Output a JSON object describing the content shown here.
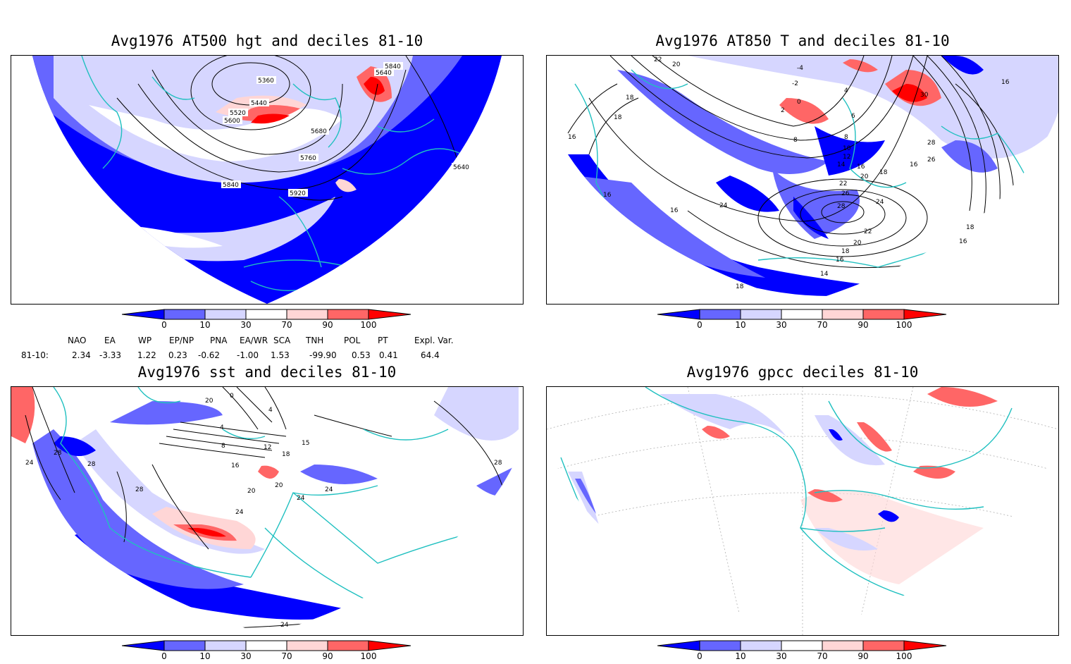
{
  "panels": [
    {
      "title": "Avg1976 AT500 hgt and deciles 81-10",
      "contour_labels": [
        "5360",
        "5440",
        "5520",
        "5600",
        "5840",
        "5640",
        "5680",
        "5760",
        "5840",
        "5920",
        "5640"
      ]
    },
    {
      "title": "Avg1976 AT850 T and deciles 81-10",
      "contour_labels": [
        "22",
        "20",
        "-4",
        "-2",
        "0",
        "2",
        "4",
        "18",
        "18",
        "16",
        "8",
        "6",
        "8",
        "10",
        "12",
        "14",
        "16",
        "18",
        "20",
        "22",
        "24",
        "26",
        "28",
        "30",
        "28",
        "26",
        "16",
        "16",
        "16",
        "16",
        "24",
        "22",
        "20",
        "18",
        "16",
        "14",
        "18",
        "18",
        "16"
      ]
    },
    {
      "title": "Avg1976 sst and deciles 81-10",
      "contour_labels": [
        "20",
        "0",
        "4",
        "4",
        "8",
        "12",
        "15",
        "16",
        "18",
        "20",
        "20",
        "24",
        "24",
        "28",
        "28",
        "28",
        "24",
        "24",
        "24",
        "28"
      ]
    },
    {
      "title": "Avg1976 gpcc deciles 81-10",
      "contour_labels": []
    }
  ],
  "colorbar": {
    "ticks": [
      "0",
      "10",
      "30",
      "70",
      "90",
      "100"
    ],
    "colors": [
      "#0000ff",
      "#6666ff",
      "#d6d6ff",
      "#ffffff",
      "#ffd6d6",
      "#ff6666",
      "#ff0000"
    ]
  },
  "indices": {
    "headers": [
      "NAO",
      "EA",
      "WP",
      "EP/NP",
      "PNA",
      "EA/WR",
      "SCA",
      "TNH",
      "POL",
      "PT",
      "Expl. Var."
    ],
    "row_label": "81-10:",
    "values": [
      "2.34",
      "-3.33",
      "1.22",
      "0.23",
      "-0.62",
      "-1.00",
      "1.53",
      "-99.90",
      "0.53",
      "0.41",
      "64.4"
    ]
  }
}
